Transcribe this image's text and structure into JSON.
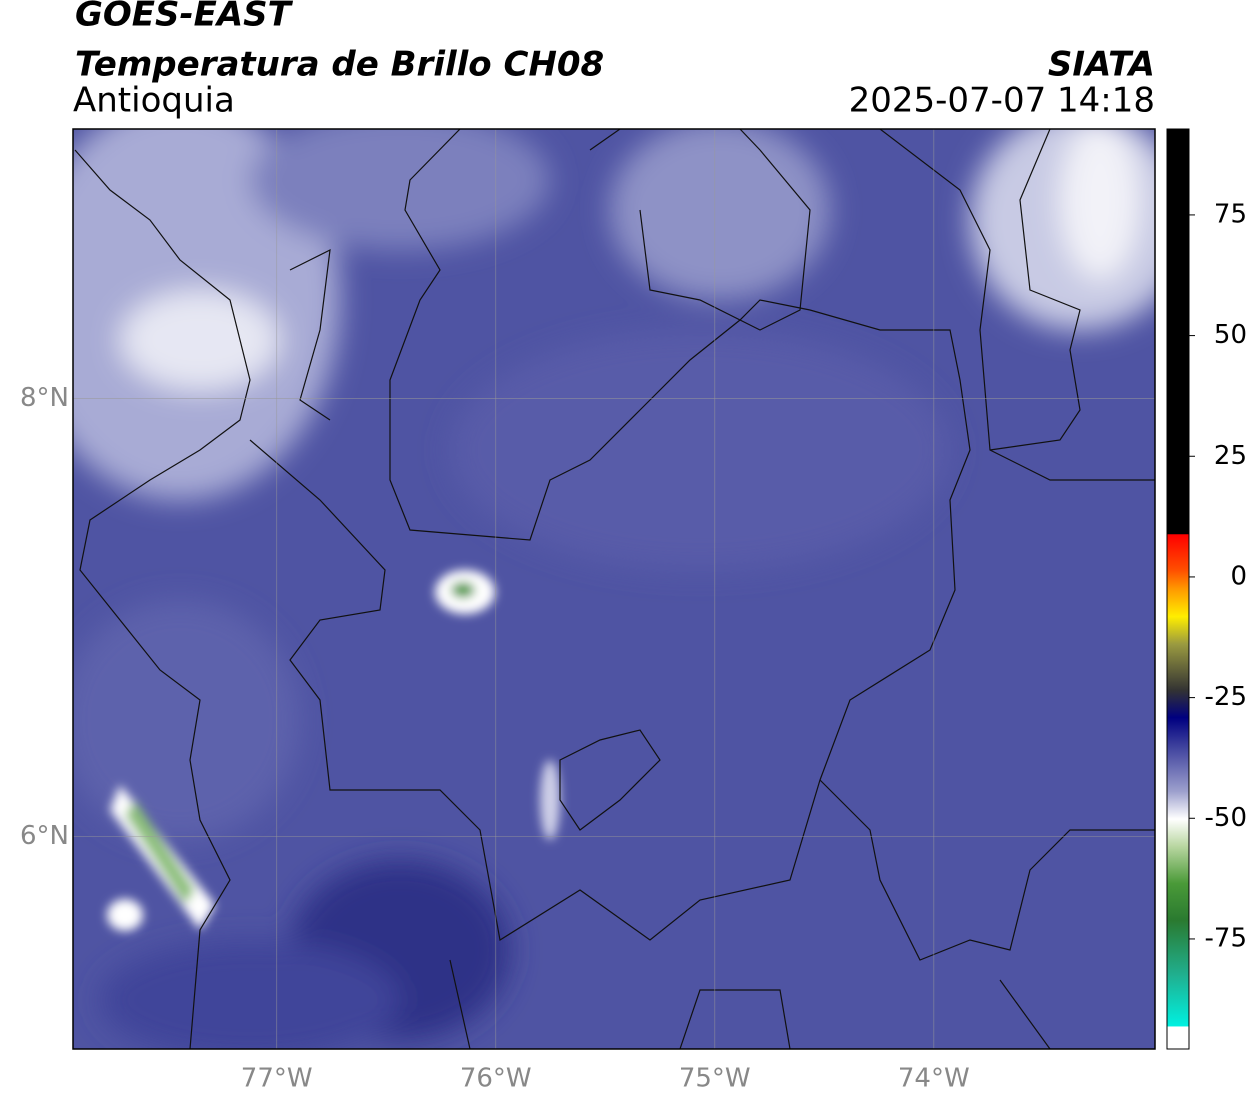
{
  "header": {
    "title": "GOES-EAST",
    "subtitle": "Temperatura de Brillo CH08",
    "region": "Antioquia",
    "agency": "SIATA",
    "datetime": "2025-07-07 14:18"
  },
  "map": {
    "xlim": [
      -77.93,
      -72.99
    ],
    "ylim": [
      5.03,
      9.23
    ],
    "xticks": [
      {
        "value": -77,
        "label": "77°W"
      },
      {
        "value": -76,
        "label": "76°W"
      },
      {
        "value": -75,
        "label": "75°W"
      },
      {
        "value": -74,
        "label": "74°W"
      }
    ],
    "yticks": [
      {
        "value": 8,
        "label": "8°N"
      },
      {
        "value": 6,
        "label": "6°N"
      }
    ]
  },
  "colorbar": {
    "lim": [
      -97.8,
      92.8
    ],
    "ticks": [
      75,
      50,
      25,
      0,
      -25,
      -50,
      -75
    ]
  }
}
